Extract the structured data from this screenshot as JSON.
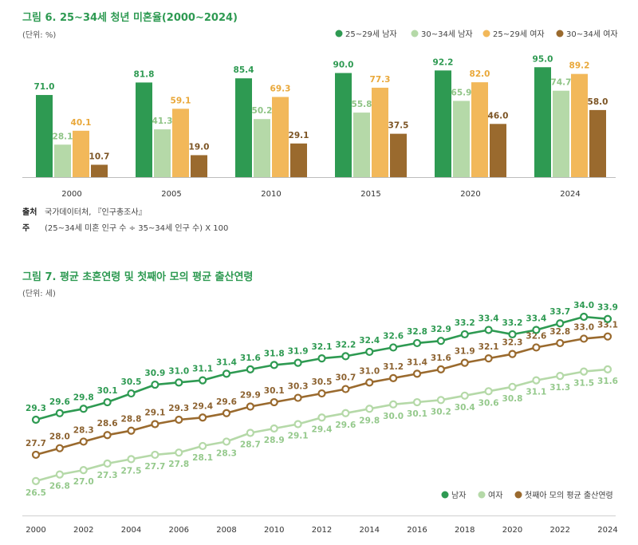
{
  "fig6": {
    "title": "그림 6. 25~34세 청년 미혼율(2000~2024)",
    "unit": "(단위: %)",
    "source_key": "출처",
    "source": "국가데이터처, 『인구총조사』",
    "note_key": "주",
    "note": "(25~34세 미혼 인구 수 ÷ 35~34세 인구 수) X 100",
    "colors": [
      "#2e9a52",
      "#b5d9a8",
      "#f2b85a",
      "#9a6a2e"
    ],
    "label_colors": [
      "#2e9a52",
      "#8fc486",
      "#e9a83a",
      "#7c5424"
    ]
  },
  "fig7": {
    "title": "그림 7. 평균 초혼연령 및 첫째아 모의 평균 출산연령",
    "unit": "(단위: 세)",
    "colors": [
      "#2e9a52",
      "#b5d9a8",
      "#9a6a2e"
    ],
    "label_colors": [
      "#2e9a52",
      "#95c98c",
      "#8c6230"
    ]
  },
  "chart_data": [
    {
      "type": "bar",
      "title": "그림 6. 25~34세 청년 미혼율(2000~2024)",
      "ylabel": "(단위: %)",
      "ylim": [
        0,
        100
      ],
      "grid": false,
      "legend_position": "top-right",
      "categories": [
        "2000",
        "2005",
        "2010",
        "2015",
        "2020",
        "2024"
      ],
      "series": [
        {
          "name": "25~29세 남자",
          "values": [
            71.0,
            81.8,
            85.4,
            90.0,
            92.2,
            95.0
          ]
        },
        {
          "name": "30~34세 남자",
          "values": [
            28.1,
            41.3,
            50.2,
            55.8,
            65.9,
            74.7
          ]
        },
        {
          "name": "25~29세 여자",
          "values": [
            40.1,
            59.1,
            69.3,
            77.3,
            82.0,
            89.2
          ]
        },
        {
          "name": "30~34세 여자",
          "values": [
            10.7,
            19.0,
            29.1,
            37.5,
            46.0,
            58.0
          ]
        }
      ]
    },
    {
      "type": "line",
      "title": "그림 7. 평균 초혼연령 및 첫째아 모의 평균 출산연령",
      "ylabel": "(단위: 세)",
      "ylim": [
        25,
        35
      ],
      "grid": false,
      "legend_position": "bottom-right",
      "x": [
        2000,
        2001,
        2002,
        2003,
        2004,
        2005,
        2006,
        2007,
        2008,
        2009,
        2010,
        2011,
        2012,
        2013,
        2014,
        2015,
        2016,
        2017,
        2018,
        2019,
        2020,
        2021,
        2022,
        2023,
        2024
      ],
      "x_ticks": [
        "2000",
        "2002",
        "2004",
        "2006",
        "2008",
        "2010",
        "2012",
        "2014",
        "2016",
        "2018",
        "2020",
        "2022",
        "2024"
      ],
      "series": [
        {
          "name": "남자",
          "values": [
            29.3,
            29.6,
            29.8,
            30.1,
            30.5,
            30.9,
            31.0,
            31.1,
            31.4,
            31.6,
            31.8,
            31.9,
            32.1,
            32.2,
            32.4,
            32.6,
            32.8,
            32.9,
            33.2,
            33.4,
            33.2,
            33.4,
            33.7,
            34.0,
            33.9
          ]
        },
        {
          "name": "여자",
          "values": [
            26.5,
            26.8,
            27.0,
            27.3,
            27.5,
            27.7,
            27.8,
            28.1,
            28.3,
            28.7,
            28.9,
            29.1,
            29.4,
            29.6,
            29.8,
            30.0,
            30.1,
            30.2,
            30.4,
            30.6,
            30.8,
            31.1,
            31.3,
            31.5,
            31.6
          ]
        },
        {
          "name": "첫째아 모의 평균 출산연령",
          "values": [
            27.7,
            28.0,
            28.3,
            28.6,
            28.8,
            29.1,
            29.3,
            29.4,
            29.6,
            29.9,
            30.1,
            30.3,
            30.5,
            30.7,
            31.0,
            31.2,
            31.4,
            31.6,
            31.9,
            32.1,
            32.3,
            32.6,
            32.8,
            33.0,
            33.1
          ]
        }
      ]
    }
  ]
}
